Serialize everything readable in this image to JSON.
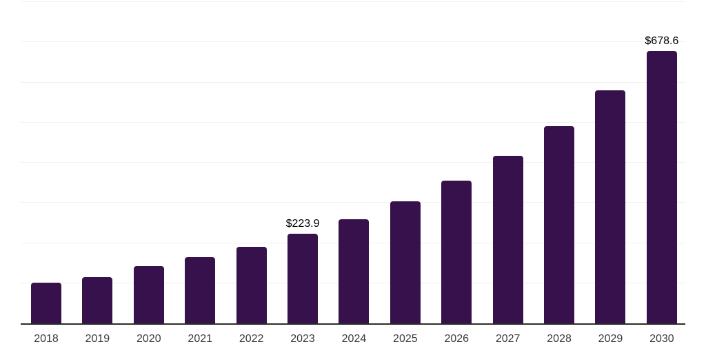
{
  "chart_data": {
    "type": "bar",
    "categories": [
      "2018",
      "2019",
      "2020",
      "2021",
      "2022",
      "2023",
      "2024",
      "2025",
      "2026",
      "2027",
      "2028",
      "2029",
      "2030"
    ],
    "values": [
      101.3,
      115.0,
      142.5,
      164.8,
      190.6,
      223.9,
      259.8,
      304.0,
      356.0,
      417.0,
      490.4,
      580.2,
      678.6
    ],
    "data_labels": [
      "",
      "",
      "",
      "",
      "",
      "$223.9",
      "",
      "",
      "",
      "",
      "",
      "",
      "$678.6"
    ],
    "title": "",
    "xlabel": "",
    "ylabel": "",
    "ylim": [
      0,
      800
    ],
    "grid_step": 100,
    "grid": "horizontal",
    "ytick_labels_visible": false,
    "legend": "none",
    "colors": {
      "bar": "#36114B",
      "gridline": "#F0F0F0",
      "axis": "#2B2B2B",
      "tick_label": "#3A3A3A",
      "data_label": "#000000",
      "background": "#FFFFFF"
    }
  }
}
